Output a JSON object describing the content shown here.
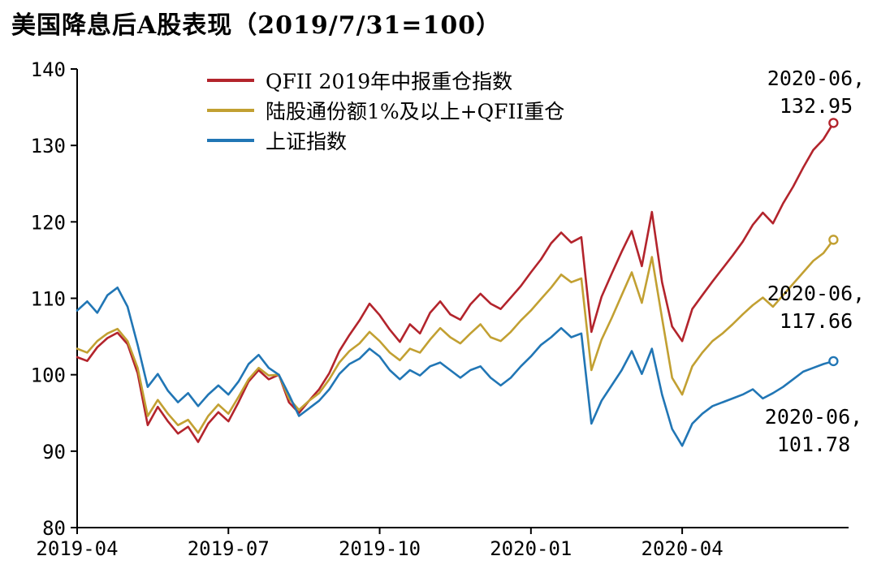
{
  "chart_data": {
    "type": "line",
    "title": "美国降息后A股表现（2019/7/31=100）",
    "xlabel": "",
    "ylabel": "",
    "ylim": [
      80,
      140
    ],
    "y_ticks": [
      80,
      90,
      100,
      110,
      120,
      130,
      140
    ],
    "x_range_months": [
      0,
      15.3
    ],
    "x_ticks": [
      {
        "label": "2019-04",
        "pos": 0
      },
      {
        "label": "2019-07",
        "pos": 3
      },
      {
        "label": "2019-10",
        "pos": 6
      },
      {
        "label": "2020-01",
        "pos": 9
      },
      {
        "label": "2020-04",
        "pos": 12
      }
    ],
    "grid": false,
    "legend_position": "top-inside-left",
    "x": [
      0,
      0.2,
      0.4,
      0.6,
      0.8,
      1,
      1.2,
      1.4,
      1.6,
      1.8,
      2,
      2.2,
      2.4,
      2.6,
      2.8,
      3,
      3.2,
      3.4,
      3.6,
      3.8,
      4,
      4.2,
      4.4,
      4.6,
      4.8,
      5,
      5.2,
      5.4,
      5.6,
      5.8,
      6,
      6.2,
      6.4,
      6.6,
      6.8,
      7,
      7.2,
      7.4,
      7.6,
      7.8,
      8,
      8.2,
      8.4,
      8.6,
      8.8,
      9,
      9.2,
      9.4,
      9.6,
      9.8,
      10,
      10.2,
      10.4,
      10.6,
      10.8,
      11,
      11.2,
      11.4,
      11.6,
      11.8,
      12,
      12.2,
      12.4,
      12.6,
      12.8,
      13,
      13.2,
      13.4,
      13.6,
      13.8,
      14,
      14.2,
      14.4,
      14.6,
      14.8,
      15
    ],
    "series": [
      {
        "name": "QFII 2019年中报重仓指数",
        "color": "#B3242C",
        "values": [
          102.3,
          101.8,
          103.6,
          104.8,
          105.5,
          104.0,
          100.2,
          93.4,
          95.8,
          93.9,
          92.3,
          93.2,
          91.2,
          93.6,
          95.1,
          93.9,
          96.4,
          99.1,
          100.6,
          99.4,
          100.0,
          96.4,
          95.0,
          96.6,
          98.1,
          100.2,
          103.1,
          105.2,
          107.1,
          109.3,
          107.8,
          105.9,
          104.3,
          106.6,
          105.4,
          108.1,
          109.6,
          107.9,
          107.2,
          109.2,
          110.6,
          109.3,
          108.6,
          110.1,
          111.6,
          113.4,
          115.1,
          117.2,
          118.6,
          117.3,
          118.0,
          105.6,
          110.2,
          113.2,
          116.1,
          118.8,
          114.2,
          121.3,
          112.1,
          106.3,
          104.4,
          108.6,
          110.4,
          112.2,
          113.9,
          115.6,
          117.4,
          119.6,
          121.2,
          119.8,
          122.4,
          124.6,
          127.1,
          129.4,
          130.8,
          132.95
        ],
        "end_value": 132.95
      },
      {
        "name": "陆股通份额1%及以上+QFII重仓",
        "color": "#C2A032",
        "values": [
          103.4,
          102.9,
          104.4,
          105.4,
          106.0,
          104.4,
          100.9,
          94.6,
          96.7,
          94.9,
          93.4,
          94.1,
          92.4,
          94.6,
          96.1,
          94.9,
          97.1,
          99.4,
          100.9,
          99.9,
          100.0,
          96.9,
          95.4,
          96.6,
          97.6,
          99.4,
          101.6,
          103.1,
          104.1,
          105.6,
          104.4,
          102.9,
          101.9,
          103.4,
          102.9,
          104.6,
          106.1,
          104.9,
          104.1,
          105.4,
          106.6,
          104.9,
          104.4,
          105.6,
          107.1,
          108.4,
          109.9,
          111.4,
          113.1,
          112.1,
          112.6,
          100.6,
          104.6,
          107.4,
          110.4,
          113.4,
          109.4,
          115.4,
          107.4,
          99.6,
          97.4,
          101.1,
          102.9,
          104.4,
          105.4,
          106.6,
          107.9,
          109.1,
          110.1,
          108.9,
          110.4,
          111.9,
          113.4,
          114.9,
          115.9,
          117.66
        ],
        "end_value": 117.66
      },
      {
        "name": "上证指数",
        "color": "#2176B5",
        "values": [
          108.4,
          109.6,
          108.1,
          110.4,
          111.4,
          108.9,
          103.9,
          98.4,
          100.1,
          97.9,
          96.4,
          97.6,
          95.9,
          97.4,
          98.6,
          97.4,
          99.1,
          101.4,
          102.6,
          100.9,
          100.0,
          97.4,
          94.6,
          95.6,
          96.6,
          98.1,
          100.1,
          101.4,
          102.1,
          103.4,
          102.4,
          100.6,
          99.4,
          100.6,
          99.9,
          101.1,
          101.6,
          100.6,
          99.6,
          100.6,
          101.1,
          99.6,
          98.6,
          99.6,
          101.1,
          102.4,
          103.9,
          104.9,
          106.1,
          104.9,
          105.4,
          93.6,
          96.6,
          98.6,
          100.6,
          103.1,
          100.1,
          103.4,
          97.4,
          92.9,
          90.7,
          93.6,
          94.9,
          95.9,
          96.4,
          96.9,
          97.4,
          98.1,
          96.9,
          97.6,
          98.4,
          99.4,
          100.4,
          100.9,
          101.4,
          101.78
        ],
        "end_value": 101.78
      }
    ],
    "annotations": [
      {
        "date": "2020-06,",
        "value": "132.95"
      },
      {
        "date": "2020-06,",
        "value": "117.66"
      },
      {
        "date": "2020-06,",
        "value": "101.78"
      }
    ]
  }
}
